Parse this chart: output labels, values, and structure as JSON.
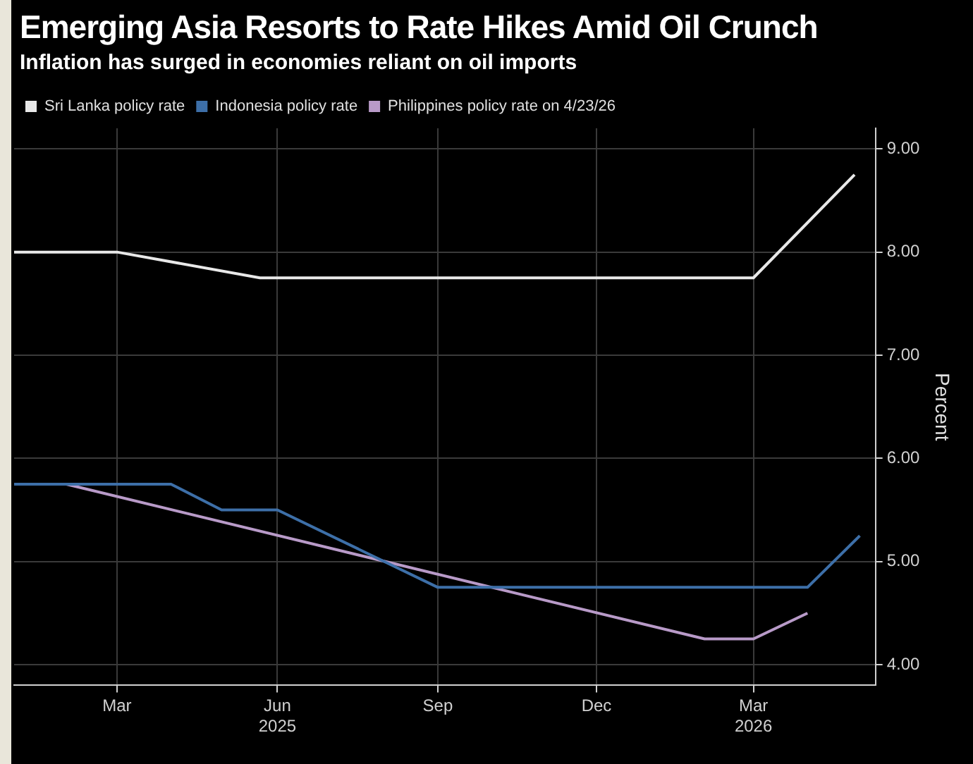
{
  "chart_data": {
    "type": "line",
    "title": "Emerging Asia Resorts to Rate Hikes Amid Oil Crunch",
    "subtitle": "Inflation has surged in economies reliant on oil imports",
    "y2label": "Percent",
    "series": [
      {
        "name": "Sri Lanka policy rate",
        "color": "#e8e8e8",
        "axis": "y2",
        "x": [
          "2025-01-01",
          "2025-03-01",
          "2025-05-22",
          "2026-03-01",
          "2026-04-28"
        ],
        "values": [
          8.0,
          8.0,
          7.75,
          7.75,
          8.75
        ]
      },
      {
        "name": "Indonesia policy rate",
        "color": "#3d6fa8",
        "axis": "y2",
        "x": [
          "2025-01-01",
          "2025-04-01",
          "2025-04-30",
          "2025-06-01",
          "2025-09-01",
          "2026-04-01",
          "2026-05-01"
        ],
        "values": [
          5.75,
          5.75,
          5.5,
          5.5,
          4.75,
          4.75,
          5.25
        ]
      },
      {
        "name": "Philippines policy rate on 4/23/26",
        "color": "#b89ac8",
        "axis": "y2",
        "x": [
          "2025-01-01",
          "2025-01-31",
          "2026-02-01",
          "2026-03-01",
          "2026-04-01"
        ],
        "values": [
          5.75,
          5.75,
          4.25,
          4.25,
          4.5
        ]
      }
    ],
    "xlim": [
      "2025-01-01",
      "2026-05-10"
    ],
    "xticks": [
      {
        "value": "2025-03-01",
        "label": "Mar"
      },
      {
        "value": "2025-06-01",
        "label": "Jun\n2025"
      },
      {
        "value": "2025-09-01",
        "label": "Sep"
      },
      {
        "value": "2025-12-01",
        "label": "Dec"
      },
      {
        "value": "2026-03-01",
        "label": "Mar\n2026"
      }
    ],
    "y2lim": [
      3.8,
      9.2
    ],
    "y2ticks": [
      {
        "value": 4,
        "label": "4.00"
      },
      {
        "value": 5,
        "label": "5.00"
      },
      {
        "value": 6,
        "label": "6.00"
      },
      {
        "value": 7,
        "label": "7.00"
      },
      {
        "value": 8,
        "label": "8.00"
      },
      {
        "value": 9,
        "label": "9.00"
      }
    ],
    "grid": true,
    "legend": "top left",
    "marker": "none",
    "line_style": "solid"
  }
}
